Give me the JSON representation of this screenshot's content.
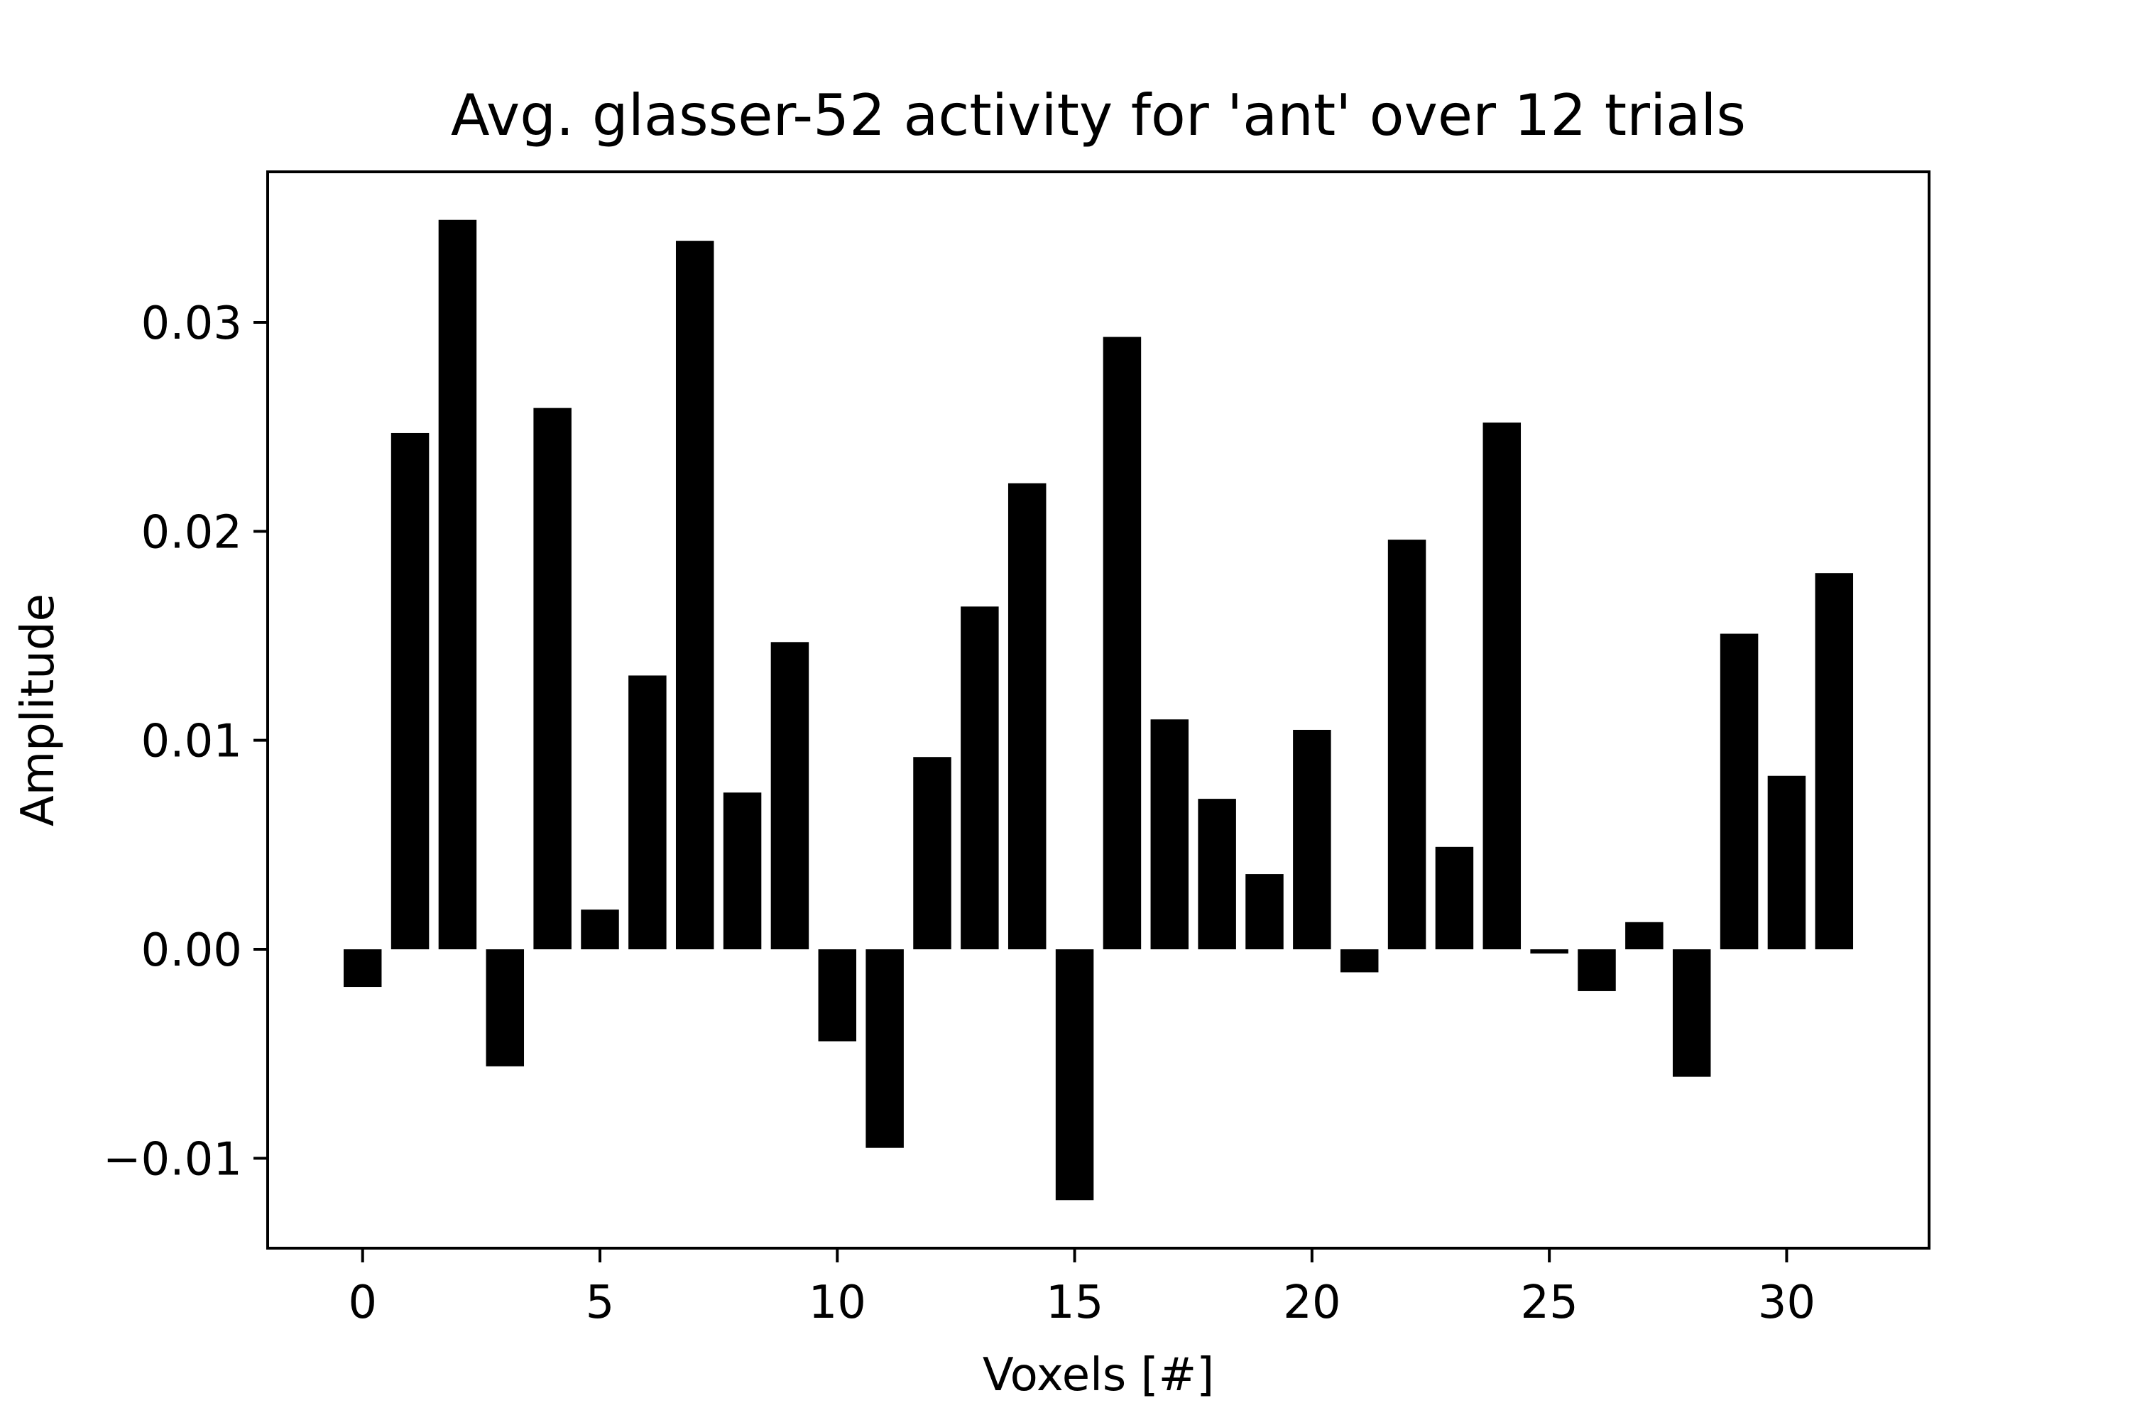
{
  "chart_data": {
    "type": "bar",
    "title": "Avg. glasser-52 activity for 'ant' over 12 trials",
    "xlabel": "Voxels [#]",
    "ylabel": "Amplitude",
    "bar_color": "#000000",
    "xlim": [
      -2,
      33
    ],
    "ylim": [
      -0.0143,
      0.0372
    ],
    "xticks": [
      0,
      5,
      10,
      15,
      20,
      25,
      30
    ],
    "xtick_labels": [
      "0",
      "5",
      "10",
      "15",
      "20",
      "25",
      "30"
    ],
    "yticks": [
      -0.01,
      0.0,
      0.01,
      0.02,
      0.03
    ],
    "ytick_labels": [
      "−0.01",
      "0.00",
      "0.01",
      "0.02",
      "0.03"
    ],
    "grid": false,
    "x": [
      0,
      1,
      2,
      3,
      4,
      5,
      6,
      7,
      8,
      9,
      10,
      11,
      12,
      13,
      14,
      15,
      16,
      17,
      18,
      19,
      20,
      21,
      22,
      23,
      24,
      25,
      26,
      27,
      28,
      29,
      30,
      31
    ],
    "values": [
      -0.0018,
      0.0247,
      0.0349,
      -0.0056,
      0.0259,
      0.0019,
      0.0131,
      0.0339,
      0.0075,
      0.0147,
      -0.0044,
      -0.0095,
      0.0092,
      0.0164,
      0.0223,
      -0.012,
      0.0293,
      0.011,
      0.0072,
      0.0036,
      0.0105,
      -0.0011,
      0.0196,
      0.0049,
      0.0252,
      -0.0002,
      -0.002,
      0.0013,
      -0.0061,
      0.0151,
      0.0083,
      0.018
    ]
  }
}
